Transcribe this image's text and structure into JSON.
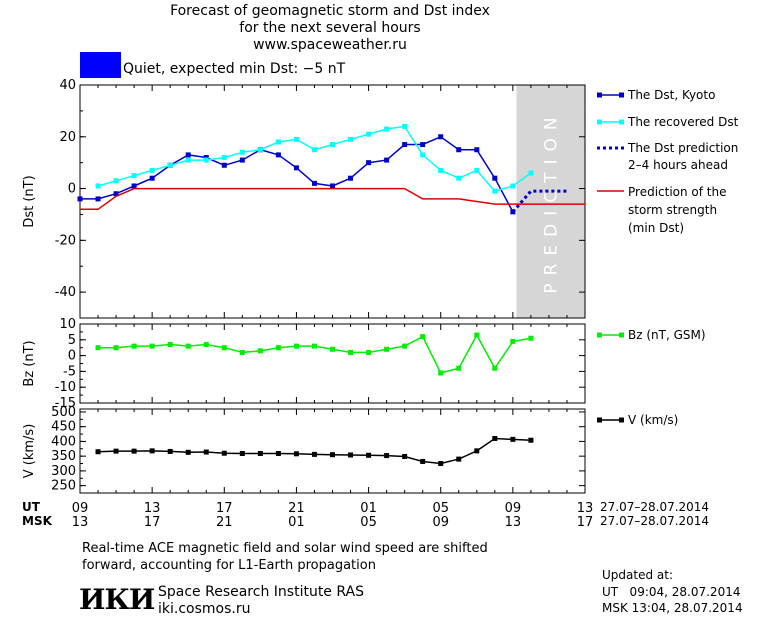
{
  "header": {
    "title_line1": "Forecast of geomagnetic storm and Dst index",
    "title_line2": "for the next several hours",
    "title_line3": "www.spaceweather.ru",
    "status_text": "Quiet, expected min Dst: −5 nT",
    "status_color": "#0000ff"
  },
  "colors": {
    "dst_kyoto": "#0000cc",
    "dst_recovered": "#00ffff",
    "dst_prediction": "#0000cc",
    "storm_strength": "#e00000",
    "bz": "#00ee00",
    "v": "#000000",
    "prediction_zone": "#d6d6d6"
  },
  "prediction_label": "PREDICTION",
  "legend": {
    "dst_kyoto": "The Dst, Kyoto",
    "dst_recovered": "The recovered Dst",
    "dst_prediction_line1": "The Dst prediction",
    "dst_prediction_line2": "2–4 hours ahead",
    "storm_line1": "Prediction of the",
    "storm_line2": "storm strength",
    "storm_line3": "(min Dst)",
    "bz": "Bz (nT, GSM)",
    "v": "V (km/s)"
  },
  "time_axis": {
    "ut_label": "UT",
    "msk_label": "MSK",
    "ut_ticks": [
      "09",
      "13",
      "17",
      "21",
      "01",
      "05",
      "09",
      "13"
    ],
    "msk_ticks": [
      "13",
      "17",
      "21",
      "01",
      "05",
      "09",
      "13",
      "17"
    ],
    "ut_date_range": "27.07–28.07.2014",
    "msk_date_range": "27.07–28.07.2014"
  },
  "chart_data": [
    {
      "type": "line",
      "ylabel": "Dst (nT)",
      "ylim": [
        -50,
        40
      ],
      "yticks": [
        40,
        20,
        0,
        -20,
        -40
      ],
      "xlim": [
        9,
        37
      ],
      "prediction_zone": [
        33.2,
        37
      ],
      "series": [
        {
          "name": "The Dst, Kyoto",
          "x": [
            9,
            10,
            11,
            12,
            13,
            14,
            15,
            16,
            17,
            18,
            19,
            20,
            21,
            22,
            23,
            24,
            25,
            26,
            27,
            28,
            29,
            30,
            31,
            32,
            33
          ],
          "y": [
            -4,
            -4,
            -2,
            1,
            4,
            9,
            13,
            12,
            9,
            11,
            15,
            13,
            8,
            2,
            1,
            4,
            10,
            11,
            17,
            17,
            20,
            15,
            15,
            4,
            -9
          ]
        },
        {
          "name": "The recovered Dst",
          "x": [
            10,
            11,
            12,
            13,
            14,
            15,
            16,
            17,
            18,
            19,
            20,
            21,
            22,
            23,
            24,
            25,
            26,
            27,
            28,
            29,
            30,
            31,
            32,
            33,
            34
          ],
          "y": [
            1,
            3,
            5,
            7,
            9,
            11,
            11,
            12,
            14,
            15,
            18,
            19,
            15,
            17,
            19,
            21,
            23,
            24,
            13,
            7,
            4,
            7,
            -1,
            1,
            6
          ]
        },
        {
          "name": "The Dst prediction 2–4 hours ahead",
          "x": [
            33,
            34,
            35,
            36
          ],
          "y": [
            -9,
            -1,
            -1,
            -1
          ]
        },
        {
          "name": "Prediction of the storm strength (min Dst)",
          "x": [
            9,
            10,
            11,
            12,
            13,
            14,
            15,
            16,
            17,
            18,
            19,
            20,
            21,
            22,
            23,
            24,
            25,
            26,
            27,
            28,
            29,
            30,
            31,
            32,
            33,
            34,
            35,
            36,
            37
          ],
          "y": [
            -8,
            -8,
            -3,
            0,
            0,
            0,
            0,
            0,
            0,
            0,
            0,
            0,
            0,
            0,
            0,
            0,
            0,
            0,
            0,
            -4,
            -4,
            -4,
            -5,
            -6,
            -6,
            -6,
            -6,
            -6,
            -6
          ]
        }
      ]
    },
    {
      "type": "line",
      "ylabel": "Bz (nT)",
      "ylim": [
        -15,
        10
      ],
      "yticks": [
        10,
        5,
        0,
        -5,
        -10,
        -15
      ],
      "xlim": [
        9,
        37
      ],
      "series": [
        {
          "name": "Bz (nT, GSM)",
          "x": [
            10,
            11,
            12,
            13,
            14,
            15,
            16,
            17,
            18,
            19,
            20,
            21,
            22,
            23,
            24,
            25,
            26,
            27,
            28,
            29,
            30,
            31,
            32,
            33,
            34
          ],
          "y": [
            2.5,
            2.5,
            3,
            3,
            3.5,
            3,
            3.5,
            2.5,
            1,
            1.5,
            2.5,
            3,
            3,
            2,
            1,
            1,
            2,
            3,
            6,
            -5.5,
            -4,
            6.5,
            -4,
            4.5,
            5.5
          ]
        }
      ]
    },
    {
      "type": "line",
      "ylabel": "V (km/s)",
      "ylim": [
        225,
        510
      ],
      "yticks": [
        500,
        450,
        400,
        350,
        300,
        250
      ],
      "xlim": [
        9,
        37
      ],
      "series": [
        {
          "name": "V (km/s)",
          "x": [
            10,
            11,
            12,
            13,
            14,
            15,
            16,
            17,
            18,
            19,
            20,
            21,
            22,
            23,
            24,
            25,
            26,
            27,
            28,
            29,
            30,
            31,
            32,
            33,
            34
          ],
          "y": [
            365,
            367,
            367,
            368,
            366,
            363,
            364,
            360,
            359,
            359,
            359,
            358,
            356,
            355,
            354,
            353,
            352,
            349,
            332,
            325,
            340,
            368,
            410,
            407,
            404
          ]
        }
      ]
    }
  ],
  "footer": {
    "note_line1": "Real-time ACE magnetic field and solar wind speed are shifted",
    "note_line2": "forward, accounting for L1-Earth propagation",
    "logo_text": "ИКИ",
    "institute": "Space Research Institute RAS",
    "website": "iki.cosmos.ru",
    "updated_label": "Updated at:",
    "updated_ut": "UT   09:04, 28.07.2014",
    "updated_msk": "MSK 13:04, 28.07.2014"
  }
}
